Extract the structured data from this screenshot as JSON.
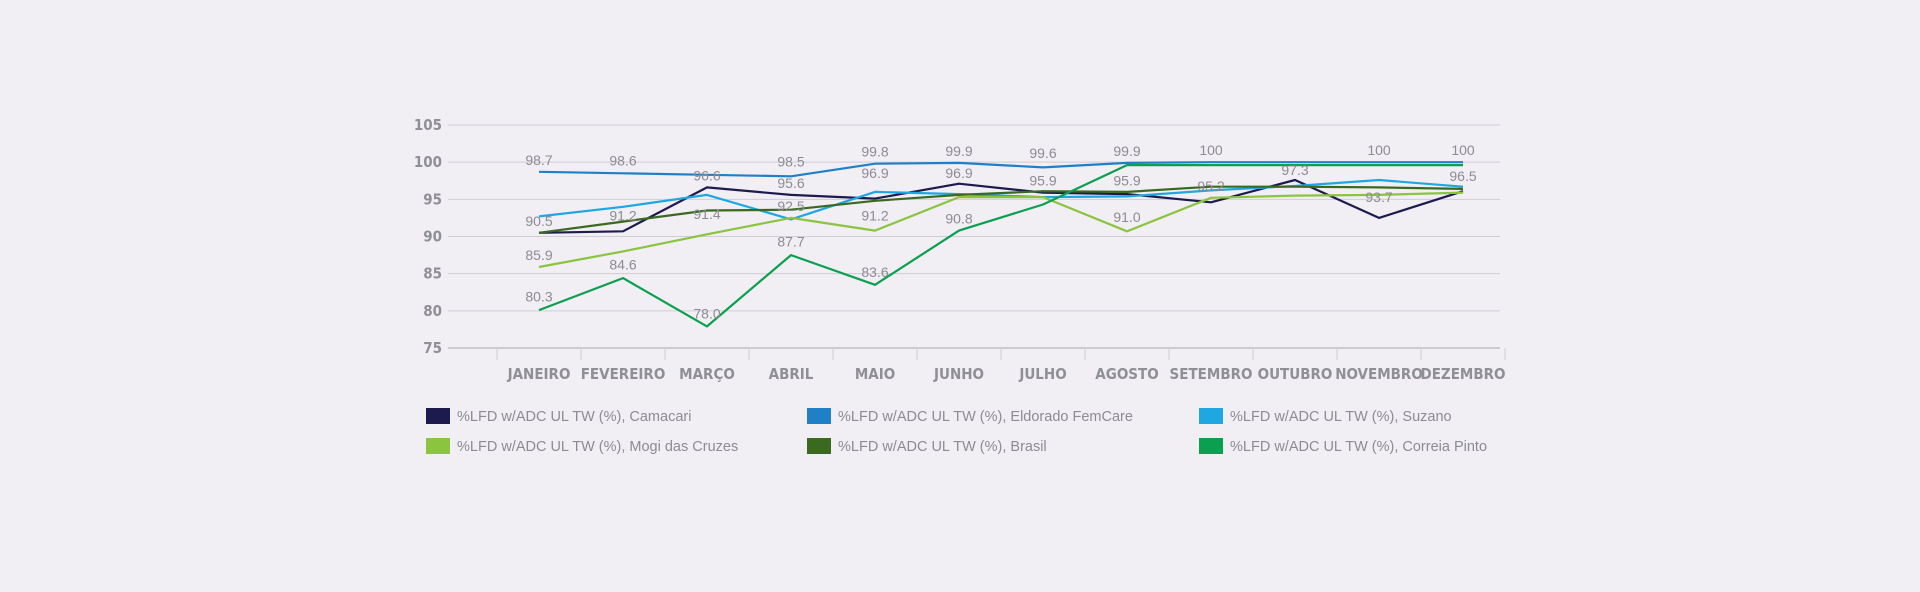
{
  "chart_data": {
    "type": "line",
    "title": "",
    "xlabel": "",
    "ylabel": "",
    "ylim": [
      75,
      105
    ],
    "yticks": [
      75,
      80,
      85,
      90,
      95,
      100,
      105
    ],
    "grid": true,
    "legend_position": "bottom",
    "categories": [
      "JANEIRO",
      "FEVEREIRO",
      "MARÇO",
      "ABRIL",
      "MAIO",
      "JUNHO",
      "JULHO",
      "AGOSTO",
      "SETEMBRO",
      "OUTUBRO",
      "NOVEMBRO",
      "DEZEMBRO"
    ],
    "series": [
      {
        "name": "%LFD w/ADC UL TW (%), Camacari",
        "color": "#1d1b4d",
        "values": [
          90.5,
          90.7,
          96.6,
          95.6,
          95.1,
          97.1,
          95.9,
          95.7,
          94.6,
          97.6,
          92.5,
          96.1
        ]
      },
      {
        "name": "%LFD w/ADC UL TW (%), Eldorado FemCare",
        "color": "#1f7fc7",
        "values": [
          98.7,
          98.5,
          98.3,
          98.1,
          99.8,
          99.9,
          99.3,
          99.9,
          100,
          100,
          100,
          100
        ]
      },
      {
        "name": "%LFD w/ADC UL TW (%), Suzano",
        "color": "#1ea7e1",
        "values": [
          92.7,
          94.0,
          95.6,
          92.3,
          96.0,
          95.7,
          95.3,
          95.4,
          96.2,
          96.8,
          97.6,
          96.7
        ]
      },
      {
        "name": "%LFD w/ADC UL TW (%), Mogi das Cruzes",
        "color": "#8bc43f",
        "values": [
          85.9,
          88.0,
          90.3,
          92.5,
          90.8,
          95.3,
          95.3,
          90.7,
          95.2,
          95.5,
          95.6,
          95.9
        ]
      },
      {
        "name": "%LFD w/ADC UL TW (%), Brasil",
        "color": "#3a6a1f",
        "values": [
          90.5,
          92.0,
          93.5,
          93.6,
          94.8,
          95.6,
          96.1,
          96.0,
          96.7,
          96.7,
          96.6,
          96.4
        ]
      },
      {
        "name": "%LFD w/ADC UL TW (%), Correia Pinto",
        "color": "#0aa04f",
        "values": [
          80.1,
          84.4,
          77.9,
          87.5,
          83.5,
          90.8,
          94.3,
          99.6,
          99.6,
          99.6,
          99.6,
          99.6
        ]
      }
    ],
    "data_labels": [
      {
        "category": "JANEIRO",
        "text": "98.7"
      },
      {
        "category": "FEVEREIRO",
        "text": "98.6"
      },
      {
        "category": "ABRIL",
        "text": "98.5"
      },
      {
        "category": "MAIO",
        "text": "99.8"
      },
      {
        "category": "JUNHO",
        "text": "99.9"
      },
      {
        "category": "JULHO",
        "text": "99.6"
      },
      {
        "category": "AGOSTO",
        "text": "99.9"
      },
      {
        "category": "SETEMBRO",
        "text": "100"
      },
      {
        "category": "NOVEMBRO",
        "text": "100"
      },
      {
        "category": "DEZEMBRO",
        "text": "100"
      },
      {
        "category": "MARÇO",
        "text": "96.6"
      },
      {
        "category": "ABRIL",
        "text": "95.6"
      },
      {
        "category": "MAIO",
        "text": "96.9"
      },
      {
        "category": "JUNHO",
        "text": "96.9"
      },
      {
        "category": "JULHO",
        "text": "95.9"
      },
      {
        "category": "AGOSTO",
        "text": "95.9"
      },
      {
        "category": "SETEMBRO",
        "text": "95.2"
      },
      {
        "category": "OUTUBRO",
        "text": "97.3"
      },
      {
        "category": "NOVEMBRO",
        "text": "93.7"
      },
      {
        "category": "DEZEMBRO",
        "text": "96.5"
      },
      {
        "category": "ABRIL",
        "text": "92.5"
      },
      {
        "category": "FEVEREIRO",
        "text": "91.2"
      },
      {
        "category": "JANEIRO",
        "text": "90.5"
      },
      {
        "category": "MARÇO",
        "text": "91.4"
      },
      {
        "category": "MAIO",
        "text": "91.2"
      },
      {
        "category": "AGOSTO",
        "text": "91.0"
      },
      {
        "category": "JANEIRO",
        "text": "85.9"
      },
      {
        "category": "FEVEREIRO",
        "text": "84.6"
      },
      {
        "category": "JANEIRO",
        "text": "80.3"
      },
      {
        "category": "MARÇO",
        "text": "78.0"
      },
      {
        "category": "ABRIL",
        "text": "87.7"
      },
      {
        "category": "MAIO",
        "text": "83.6"
      },
      {
        "category": "JUNHO",
        "text": "90.8"
      }
    ]
  }
}
